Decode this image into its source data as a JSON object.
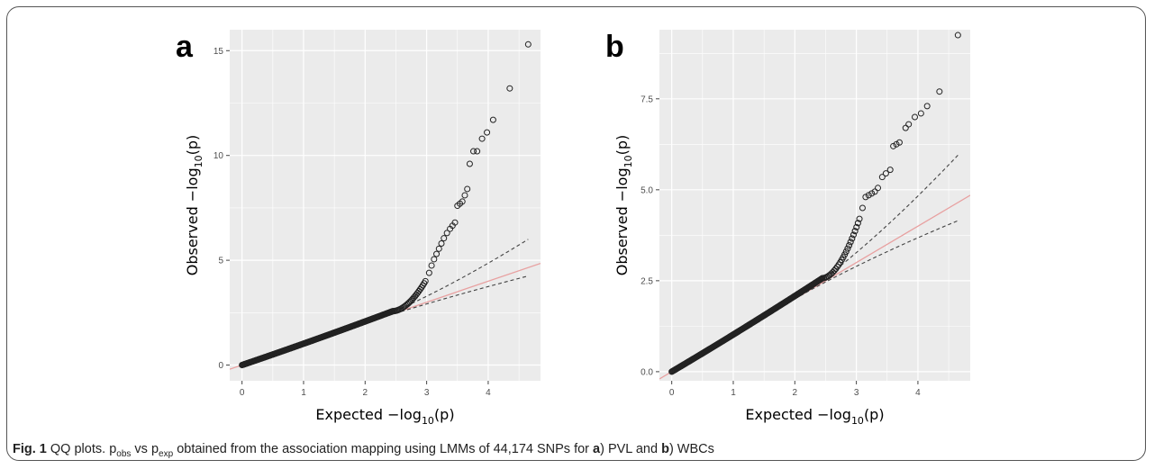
{
  "caption": {
    "fig_label": "Fig. 1",
    "title": "QQ plots.",
    "p_obs_base": "p",
    "p_obs_sub": "obs",
    "vs": "vs",
    "p_exp_base": "p",
    "p_exp_sub": "exp",
    "text_main": "obtained from the association mapping using LMMs of 44,174 SNPs for",
    "a_label": "a",
    "a_text": ") PVL and",
    "b_label": "b",
    "b_text": ") WBCs"
  },
  "colors": {
    "panel_bg": "#ebebeb",
    "grid": "#ffffff",
    "points": "#222222",
    "reference_line": "#e8a0a0",
    "ci_lines": "#444444"
  },
  "chart_data": [
    {
      "type": "scatter",
      "panel_label": "a",
      "xlabel": "Expected −log10(p)",
      "ylabel": "Observed −log10(p)",
      "xlim": [
        -0.2,
        4.85
      ],
      "ylim": [
        -0.75,
        16.0
      ],
      "x_ticks": [
        0,
        1,
        2,
        3,
        4
      ],
      "x_tick_labels": [
        "0",
        "1",
        "2",
        "3",
        "4"
      ],
      "y_ticks": [
        0,
        5,
        10,
        15
      ],
      "y_tick_labels": [
        "0",
        "5",
        "10",
        "15"
      ],
      "grid": true,
      "tail_points": [
        [
          2.98,
          4.0
        ],
        [
          3.04,
          4.4
        ],
        [
          3.08,
          4.75
        ],
        [
          3.12,
          5.05
        ],
        [
          3.16,
          5.3
        ],
        [
          3.2,
          5.55
        ],
        [
          3.24,
          5.8
        ],
        [
          3.28,
          6.05
        ],
        [
          3.33,
          6.3
        ],
        [
          3.38,
          6.5
        ],
        [
          3.42,
          6.65
        ],
        [
          3.46,
          6.8
        ],
        [
          3.5,
          7.6
        ],
        [
          3.54,
          7.7
        ],
        [
          3.58,
          7.8
        ],
        [
          3.62,
          8.1
        ],
        [
          3.66,
          8.4
        ],
        [
          3.7,
          9.6
        ],
        [
          3.76,
          10.2
        ],
        [
          3.82,
          10.2
        ],
        [
          3.9,
          10.8
        ],
        [
          3.98,
          11.1
        ],
        [
          4.08,
          11.7
        ],
        [
          4.35,
          13.2
        ],
        [
          4.65,
          15.3
        ]
      ],
      "ci_upper_end": [
        4.65,
        6.0
      ],
      "ci_lower_end": [
        4.65,
        4.25
      ]
    },
    {
      "type": "scatter",
      "panel_label": "b",
      "xlabel": "Expected −log10(p)",
      "ylabel": "Observed −log10(p)",
      "xlim": [
        -0.2,
        4.85
      ],
      "ylim": [
        -0.25,
        9.4
      ],
      "x_ticks": [
        0,
        1,
        2,
        3,
        4
      ],
      "x_tick_labels": [
        "0",
        "1",
        "2",
        "3",
        "4"
      ],
      "y_ticks": [
        0,
        2.5,
        5.0,
        7.5
      ],
      "y_tick_labels": [
        "0.0",
        "2.5",
        "5.0",
        "7.5"
      ],
      "grid": true,
      "tail_points": [
        [
          3.05,
          4.2
        ],
        [
          3.1,
          4.5
        ],
        [
          3.15,
          4.8
        ],
        [
          3.2,
          4.85
        ],
        [
          3.25,
          4.9
        ],
        [
          3.3,
          4.95
        ],
        [
          3.35,
          5.05
        ],
        [
          3.42,
          5.35
        ],
        [
          3.48,
          5.45
        ],
        [
          3.55,
          5.55
        ],
        [
          3.6,
          6.2
        ],
        [
          3.65,
          6.25
        ],
        [
          3.7,
          6.3
        ],
        [
          3.8,
          6.7
        ],
        [
          3.85,
          6.8
        ],
        [
          3.95,
          7.0
        ],
        [
          4.05,
          7.1
        ],
        [
          4.15,
          7.3
        ],
        [
          4.35,
          7.7
        ],
        [
          4.65,
          9.25
        ]
      ],
      "ci_upper_end": [
        4.65,
        5.95
      ],
      "ci_lower_end": [
        4.65,
        4.15
      ]
    }
  ]
}
